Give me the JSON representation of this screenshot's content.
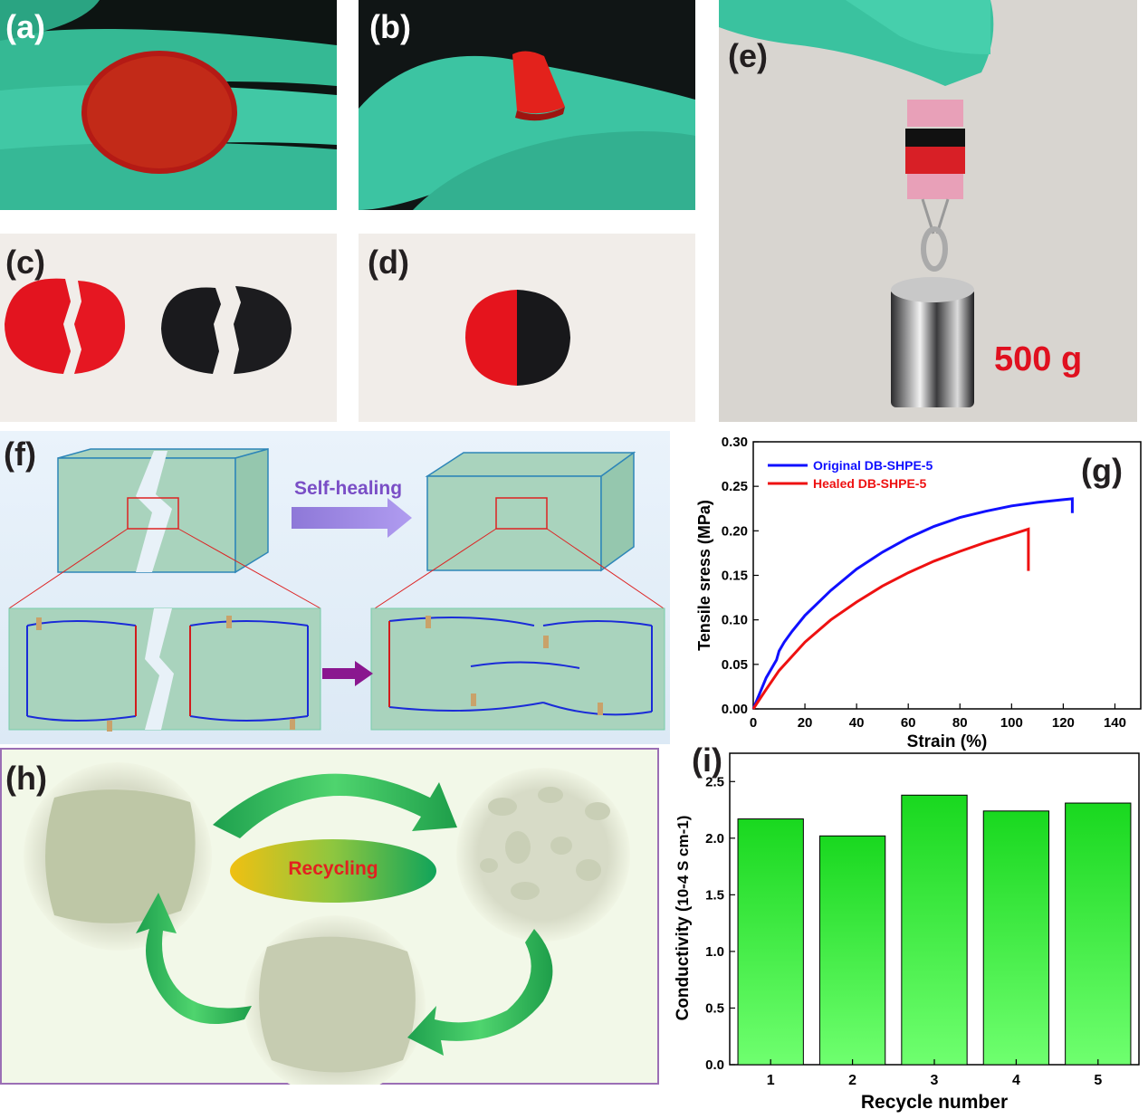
{
  "panels": {
    "a": {
      "label": "(a)"
    },
    "b": {
      "label": "(b)"
    },
    "c": {
      "label": "(c)"
    },
    "d": {
      "label": "(d)"
    },
    "e": {
      "label": "(e)",
      "weight_label": "500 g"
    },
    "f": {
      "label": "(f)",
      "arrow_label": "Self-healing"
    },
    "g": {
      "label": "(g)"
    },
    "h": {
      "label": "(h)",
      "center_label": "Recycling"
    },
    "i": {
      "label": "(i)"
    }
  },
  "colors": {
    "glove": "#3fc7a6",
    "red_film": "#e0142a",
    "black_film": "#1c1c1e",
    "original_curve": "#1010ff",
    "healed_curve": "#ee1111",
    "bar_top": "#19d81f",
    "bar_bottom": "#6fff6f",
    "schematic_fill": "#a9d3bd"
  },
  "chart_data": [
    {
      "id": "g",
      "type": "line",
      "xlabel": "Strain (%)",
      "ylabel": "Tensile sress (MPa)",
      "xlim": [
        0,
        150
      ],
      "ylim": [
        0,
        0.3
      ],
      "xticks": [
        "0",
        "20",
        "40",
        "60",
        "80",
        "100",
        "120",
        "140"
      ],
      "yticks": [
        "0.00",
        "0.05",
        "0.10",
        "0.15",
        "0.20",
        "0.25",
        "0.30"
      ],
      "legend": "top-left",
      "series": [
        {
          "name": "Original DB-SHPE-5",
          "x": [
            0,
            5,
            9,
            10,
            12,
            15,
            20,
            30,
            40,
            50,
            60,
            70,
            80,
            90,
            100,
            110,
            120,
            123.5,
            123.5
          ],
          "y": [
            0,
            0.035,
            0.055,
            0.065,
            0.075,
            0.087,
            0.105,
            0.133,
            0.157,
            0.176,
            0.192,
            0.205,
            0.215,
            0.222,
            0.228,
            0.232,
            0.235,
            0.236,
            0.22
          ]
        },
        {
          "name": "Healed DB-SHPE-5",
          "x": [
            0,
            5,
            10,
            20,
            30,
            40,
            50,
            60,
            70,
            80,
            90,
            100,
            106.5,
            106.5
          ],
          "y": [
            0,
            0.022,
            0.043,
            0.075,
            0.1,
            0.12,
            0.138,
            0.153,
            0.166,
            0.177,
            0.187,
            0.196,
            0.202,
            0.155
          ]
        }
      ]
    },
    {
      "id": "i",
      "type": "bar",
      "xlabel": "Recycle number",
      "ylabel_main": "Conductivity",
      "ylabel_unit": "10-4 S cm-1",
      "categories": [
        "1",
        "2",
        "3",
        "4",
        "5"
      ],
      "values": [
        2.17,
        2.02,
        2.38,
        2.24,
        2.31
      ],
      "ylim": [
        0,
        2.75
      ],
      "yticks": [
        "0.0",
        "0.5",
        "1.0",
        "1.5",
        "2.0",
        "2.5"
      ]
    }
  ]
}
